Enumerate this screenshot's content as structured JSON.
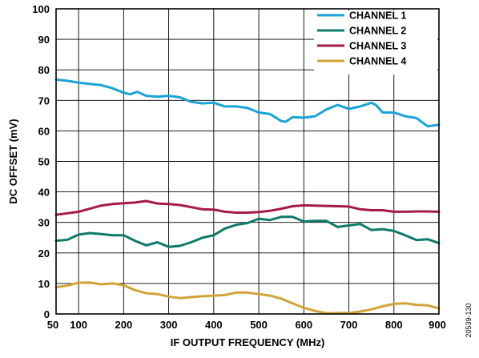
{
  "chart_data": {
    "type": "line",
    "title": "",
    "xlabel": "IF OUTPUT FREQUENCY (MHz)",
    "ylabel": "DC OFFSET (mV)",
    "xlim": [
      50,
      900
    ],
    "ylim": [
      0,
      100
    ],
    "x_ticks": [
      50,
      100,
      200,
      300,
      400,
      500,
      600,
      700,
      800,
      900
    ],
    "y_ticks": [
      0,
      10,
      20,
      30,
      40,
      50,
      60,
      70,
      80,
      90,
      100
    ],
    "grid": true,
    "legend_position": "top-right",
    "series": [
      {
        "name": "CHANNEL 1",
        "color": "#1aa3d8",
        "points": [
          [
            50,
            76.8
          ],
          [
            75,
            76.4
          ],
          [
            100,
            75.8
          ],
          [
            125,
            75.4
          ],
          [
            150,
            75.0
          ],
          [
            175,
            74.0
          ],
          [
            200,
            72.5
          ],
          [
            215,
            72.0
          ],
          [
            230,
            72.8
          ],
          [
            250,
            71.5
          ],
          [
            275,
            71.2
          ],
          [
            300,
            71.5
          ],
          [
            325,
            71.0
          ],
          [
            350,
            69.5
          ],
          [
            375,
            69.0
          ],
          [
            400,
            69.2
          ],
          [
            425,
            68.0
          ],
          [
            450,
            68.0
          ],
          [
            475,
            67.5
          ],
          [
            500,
            66.0
          ],
          [
            525,
            65.5
          ],
          [
            550,
            63.2
          ],
          [
            560,
            63.0
          ],
          [
            575,
            64.5
          ],
          [
            600,
            64.3
          ],
          [
            625,
            64.8
          ],
          [
            650,
            67.0
          ],
          [
            675,
            68.5
          ],
          [
            700,
            67.2
          ],
          [
            725,
            68.0
          ],
          [
            750,
            69.2
          ],
          [
            760,
            68.5
          ],
          [
            775,
            66.0
          ],
          [
            800,
            66.0
          ],
          [
            825,
            64.8
          ],
          [
            850,
            64.2
          ],
          [
            875,
            61.5
          ],
          [
            900,
            62.0
          ]
        ]
      },
      {
        "name": "CHANNEL 2",
        "color": "#0e7a6a",
        "points": [
          [
            50,
            24.0
          ],
          [
            75,
            24.3
          ],
          [
            100,
            26.0
          ],
          [
            125,
            26.5
          ],
          [
            150,
            26.2
          ],
          [
            175,
            25.8
          ],
          [
            200,
            25.8
          ],
          [
            225,
            24.0
          ],
          [
            250,
            22.5
          ],
          [
            275,
            23.5
          ],
          [
            300,
            22.0
          ],
          [
            325,
            22.3
          ],
          [
            350,
            23.5
          ],
          [
            375,
            25.0
          ],
          [
            400,
            25.8
          ],
          [
            425,
            28.0
          ],
          [
            450,
            29.2
          ],
          [
            475,
            29.8
          ],
          [
            500,
            31.2
          ],
          [
            525,
            30.8
          ],
          [
            550,
            31.8
          ],
          [
            575,
            31.8
          ],
          [
            600,
            30.3
          ],
          [
            625,
            30.5
          ],
          [
            650,
            30.5
          ],
          [
            675,
            28.5
          ],
          [
            700,
            29.0
          ],
          [
            725,
            29.5
          ],
          [
            750,
            27.5
          ],
          [
            775,
            27.8
          ],
          [
            800,
            27.2
          ],
          [
            825,
            25.8
          ],
          [
            850,
            24.2
          ],
          [
            875,
            24.5
          ],
          [
            900,
            23.2
          ]
        ]
      },
      {
        "name": "CHANNEL 3",
        "color": "#a6194a",
        "points": [
          [
            50,
            32.5
          ],
          [
            75,
            33.0
          ],
          [
            100,
            33.5
          ],
          [
            125,
            34.5
          ],
          [
            150,
            35.5
          ],
          [
            175,
            36.0
          ],
          [
            200,
            36.3
          ],
          [
            225,
            36.5
          ],
          [
            250,
            37.0
          ],
          [
            275,
            36.2
          ],
          [
            300,
            36.0
          ],
          [
            325,
            35.7
          ],
          [
            350,
            35.0
          ],
          [
            375,
            34.3
          ],
          [
            400,
            34.2
          ],
          [
            425,
            33.5
          ],
          [
            450,
            33.2
          ],
          [
            475,
            33.2
          ],
          [
            500,
            33.4
          ],
          [
            525,
            33.8
          ],
          [
            550,
            34.5
          ],
          [
            575,
            35.3
          ],
          [
            600,
            35.6
          ],
          [
            625,
            35.5
          ],
          [
            650,
            35.4
          ],
          [
            675,
            35.3
          ],
          [
            700,
            35.2
          ],
          [
            725,
            34.3
          ],
          [
            750,
            34.0
          ],
          [
            775,
            34.0
          ],
          [
            800,
            33.5
          ],
          [
            825,
            33.5
          ],
          [
            850,
            33.6
          ],
          [
            875,
            33.6
          ],
          [
            900,
            33.5
          ]
        ]
      },
      {
        "name": "CHANNEL 4",
        "color": "#d2a438",
        "points": [
          [
            50,
            8.8
          ],
          [
            75,
            9.3
          ],
          [
            100,
            10.2
          ],
          [
            125,
            10.3
          ],
          [
            150,
            9.7
          ],
          [
            175,
            10.0
          ],
          [
            200,
            9.4
          ],
          [
            225,
            7.8
          ],
          [
            250,
            6.8
          ],
          [
            275,
            6.5
          ],
          [
            300,
            5.7
          ],
          [
            325,
            5.2
          ],
          [
            350,
            5.5
          ],
          [
            375,
            5.8
          ],
          [
            400,
            6.0
          ],
          [
            425,
            6.2
          ],
          [
            450,
            7.0
          ],
          [
            475,
            7.0
          ],
          [
            500,
            6.5
          ],
          [
            525,
            6.0
          ],
          [
            550,
            5.0
          ],
          [
            575,
            3.5
          ],
          [
            600,
            2.0
          ],
          [
            625,
            1.0
          ],
          [
            650,
            0.2
          ],
          [
            675,
            0.3
          ],
          [
            700,
            0.3
          ],
          [
            725,
            0.8
          ],
          [
            750,
            1.5
          ],
          [
            775,
            2.5
          ],
          [
            800,
            3.3
          ],
          [
            825,
            3.5
          ],
          [
            850,
            3.0
          ],
          [
            875,
            2.8
          ],
          [
            900,
            1.8
          ]
        ]
      }
    ]
  },
  "figure_id": "20539-130"
}
